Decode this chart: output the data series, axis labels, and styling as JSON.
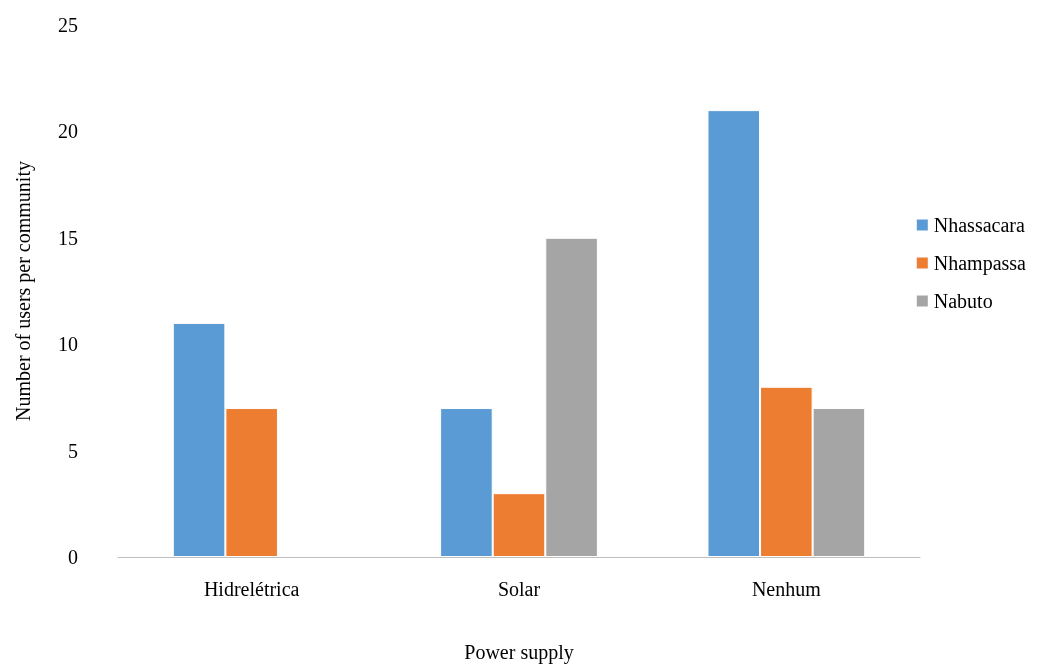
{
  "chart_data": {
    "type": "bar",
    "xlabel": "Power supply",
    "ylabel": "Number of users per community",
    "categories": [
      "Hidrelétrica",
      "Solar",
      "Nenhum"
    ],
    "series": [
      {
        "name": "Nhassacara",
        "color": "#5b9bd5",
        "values": [
          11,
          7,
          21
        ]
      },
      {
        "name": "Nhampassa",
        "color": "#ed7d31",
        "values": [
          7,
          3,
          8
        ]
      },
      {
        "name": "Nabuto",
        "color": "#a5a5a5",
        "values": [
          null,
          15,
          7
        ]
      }
    ],
    "ylim": [
      0,
      25
    ],
    "yticks": [
      0,
      5,
      10,
      15,
      20,
      25
    ],
    "grid": false,
    "legend": "right"
  }
}
